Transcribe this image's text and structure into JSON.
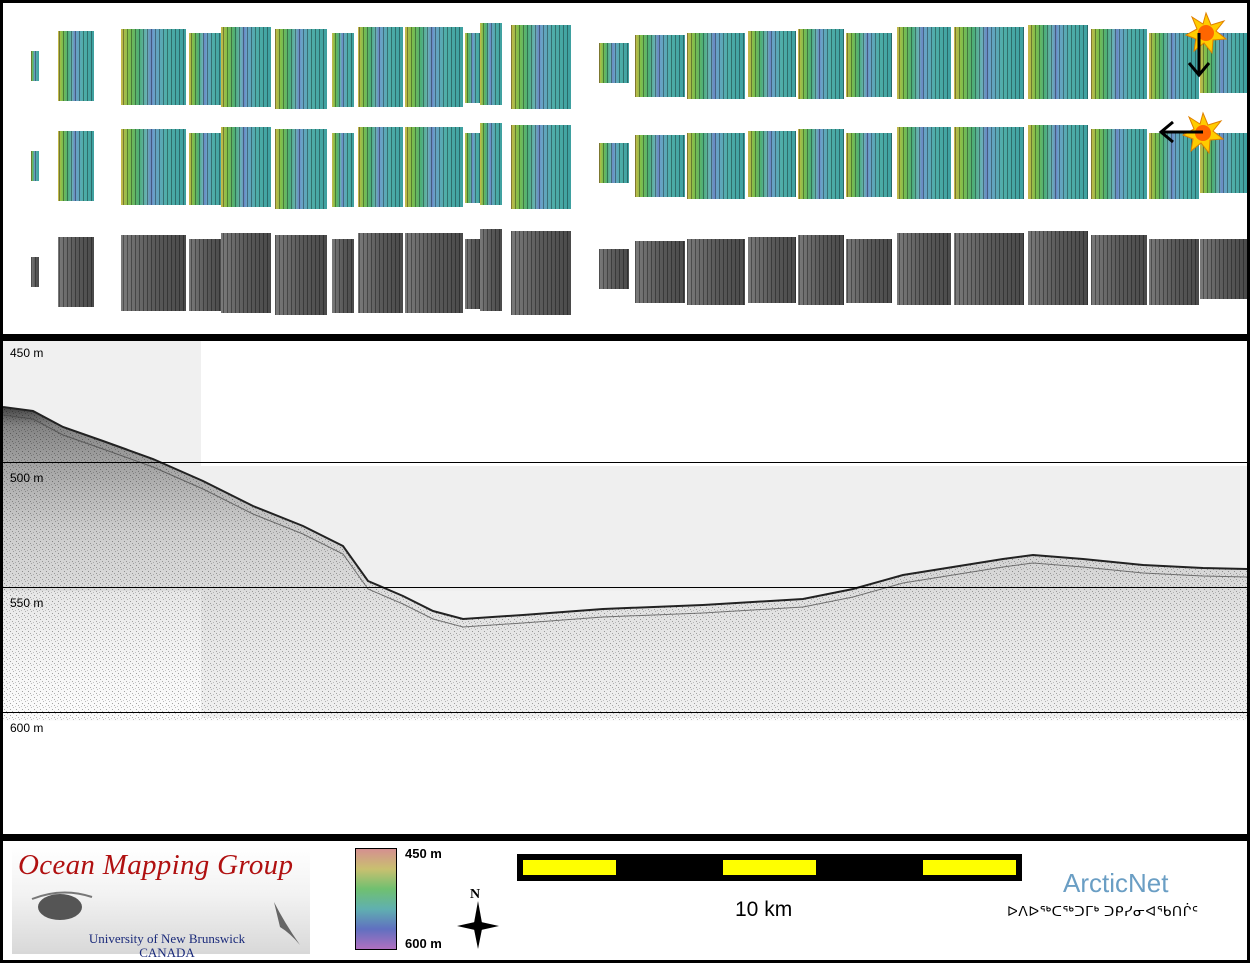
{
  "mosaic": {
    "rows": [
      "sun-illuminated-vertical",
      "sun-illuminated-horizontal",
      "backscatter"
    ]
  },
  "profile": {
    "depth_labels": [
      "450 m",
      "500 m",
      "550 m",
      "600 m"
    ]
  },
  "footer": {
    "omg_title": "Ocean Mapping Group",
    "omg_univ": "University of New Brunswick",
    "omg_country": "CANADA",
    "colorbar_top": "450 m",
    "colorbar_bottom": "600 m",
    "north_label": "N",
    "scale_label": "10 km",
    "arcticnet_title": "ArcticNet",
    "arcticnet_sub": "ᐅᐱᐅᖅᑕᖅᑐᒥᒃ ᑐᑭᓯᓂᐊᖃᑎᒌᑦ"
  },
  "colors": {
    "panel_bg": "#ffffff",
    "border": "#000000",
    "scale_fill": "#ffff00",
    "omg_red": "#b01010",
    "arctic_blue": "#6a9ec4"
  }
}
